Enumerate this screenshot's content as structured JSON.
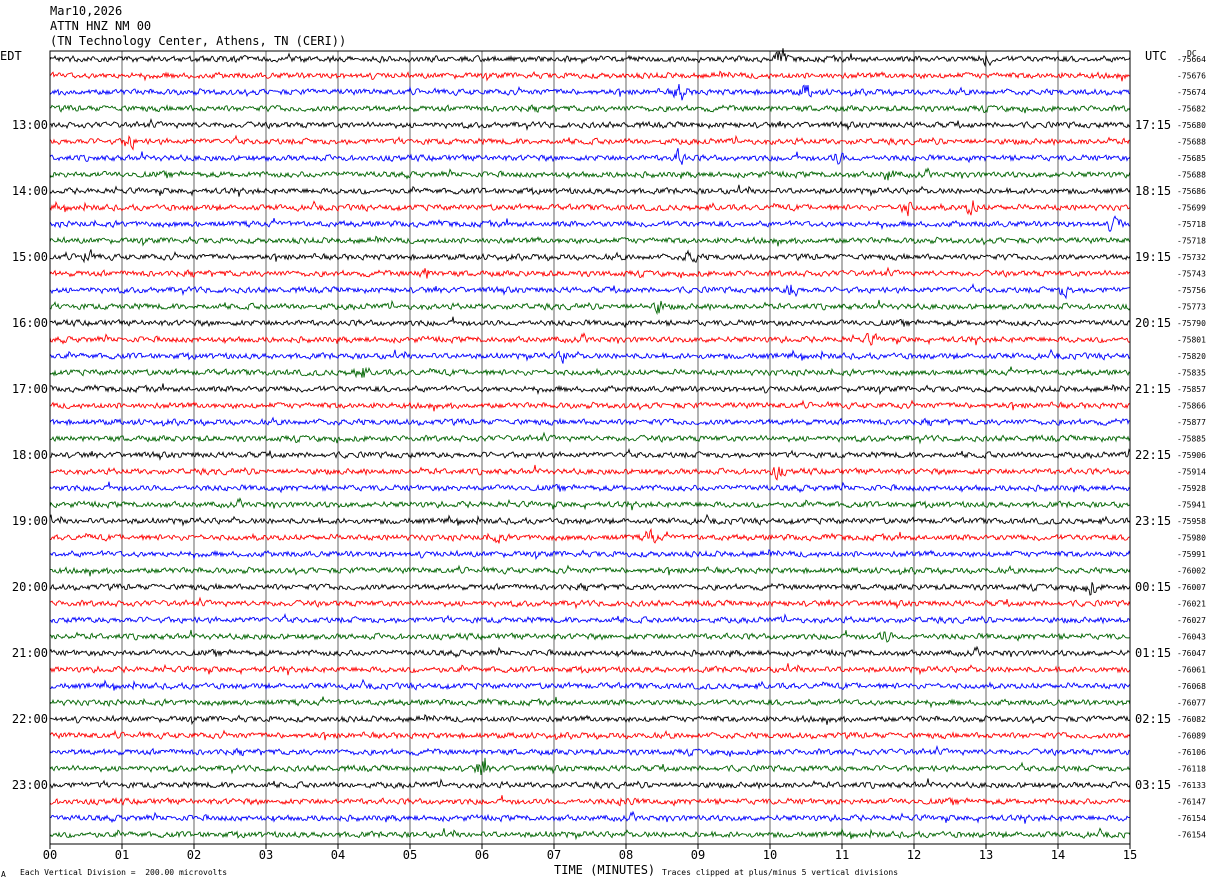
{
  "header": {
    "date": "Mar10,2026",
    "station": "ATTN HNZ NM 00",
    "location": "(TN Technology Center, Athens, TN (CERI))"
  },
  "left_tz": "EDT",
  "right_tz": "UTC",
  "dc_label": "DC",
  "footer": {
    "scale_text": "Each Vertical Division =  200.00 microvolts",
    "xlabel": "TIME (MINUTES)",
    "clip_text": "Traces clipped at plus/minus 5 vertical divisions",
    "corner_mark": "A"
  },
  "chart_data": {
    "type": "line",
    "title": "ATTN HNZ NM 00",
    "xlabel": "TIME (MINUTES)",
    "x_ticks": [
      "00",
      "01",
      "02",
      "03",
      "04",
      "05",
      "06",
      "07",
      "08",
      "09",
      "10",
      "11",
      "12",
      "13",
      "14",
      "15"
    ],
    "xlim": [
      0,
      15
    ],
    "grid": true,
    "trace_colors": [
      "#000000",
      "#ff0000",
      "#0000ff",
      "#006400"
    ],
    "left_time_labels": [
      {
        "trace": 4,
        "text": "13:00"
      },
      {
        "trace": 8,
        "text": "14:00"
      },
      {
        "trace": 12,
        "text": "15:00"
      },
      {
        "trace": 16,
        "text": "16:00"
      },
      {
        "trace": 20,
        "text": "17:00"
      },
      {
        "trace": 24,
        "text": "18:00"
      },
      {
        "trace": 28,
        "text": "19:00"
      },
      {
        "trace": 32,
        "text": "20:00"
      },
      {
        "trace": 36,
        "text": "21:00"
      },
      {
        "trace": 40,
        "text": "22:00"
      },
      {
        "trace": 44,
        "text": "23:00"
      }
    ],
    "right_time_labels": [
      {
        "trace": 4,
        "text": "17:15"
      },
      {
        "trace": 8,
        "text": "18:15"
      },
      {
        "trace": 12,
        "text": "19:15"
      },
      {
        "trace": 16,
        "text": "20:15"
      },
      {
        "trace": 20,
        "text": "21:15"
      },
      {
        "trace": 24,
        "text": "22:15"
      },
      {
        "trace": 28,
        "text": "23:15"
      },
      {
        "trace": 32,
        "text": "00:15"
      },
      {
        "trace": 36,
        "text": "01:15"
      },
      {
        "trace": 40,
        "text": "02:15"
      },
      {
        "trace": 44,
        "text": "03:15"
      }
    ],
    "dc_offsets": [
      "-75664",
      "-75676",
      "-75674",
      "-75682",
      "-75680",
      "-75688",
      "-75685",
      "-75688",
      "-75686",
      "-75699",
      "-75718",
      "-75718",
      "-75732",
      "-75743",
      "-75756",
      "-75773",
      "-75790",
      "-75801",
      "-75820",
      "-75835",
      "-75857",
      "-75866",
      "-75877",
      "-75885",
      "-75906",
      "-75914",
      "-75928",
      "-75941",
      "-75958",
      "-75980",
      "-75991",
      "-76002",
      "-76007",
      "-76021",
      "-76027",
      "-76043",
      "-76047",
      "-76061",
      "-76068",
      "-76077",
      "-76082",
      "-76089",
      "-76106",
      "-76118",
      "-76133",
      "-76147",
      "-76154",
      "-76154"
    ],
    "events": [
      {
        "trace": 0,
        "minute": 10.15,
        "amp": 2.6
      },
      {
        "trace": 0,
        "minute": 13.0,
        "amp": 1.8
      },
      {
        "trace": 2,
        "minute": 8.75,
        "amp": 3.0
      },
      {
        "trace": 2,
        "minute": 10.5,
        "amp": 2.2
      },
      {
        "trace": 5,
        "minute": 1.1,
        "amp": 2.4
      },
      {
        "trace": 6,
        "minute": 8.75,
        "amp": 2.6
      },
      {
        "trace": 6,
        "minute": 10.95,
        "amp": 1.8
      },
      {
        "trace": 7,
        "minute": 11.65,
        "amp": 2.0
      },
      {
        "trace": 9,
        "minute": 11.9,
        "amp": 2.6
      },
      {
        "trace": 9,
        "minute": 12.8,
        "amp": 2.6
      },
      {
        "trace": 10,
        "minute": 14.8,
        "amp": 2.8
      },
      {
        "trace": 12,
        "minute": 0.5,
        "amp": 2.6
      },
      {
        "trace": 12,
        "minute": 8.9,
        "amp": 2.4
      },
      {
        "trace": 13,
        "minute": 5.2,
        "amp": 1.8
      },
      {
        "trace": 14,
        "minute": 10.3,
        "amp": 2.2
      },
      {
        "trace": 14,
        "minute": 14.1,
        "amp": 2.2
      },
      {
        "trace": 15,
        "minute": 8.45,
        "amp": 2.0
      },
      {
        "trace": 17,
        "minute": 11.4,
        "amp": 1.6
      },
      {
        "trace": 18,
        "minute": 7.15,
        "amp": 2.0
      },
      {
        "trace": 19,
        "minute": 4.3,
        "amp": 2.2
      },
      {
        "trace": 25,
        "minute": 10.1,
        "amp": 2.0
      },
      {
        "trace": 29,
        "minute": 8.35,
        "amp": 2.6
      },
      {
        "trace": 29,
        "minute": 6.2,
        "amp": 1.6
      },
      {
        "trace": 32,
        "minute": 14.45,
        "amp": 2.2
      },
      {
        "trace": 35,
        "minute": 11.6,
        "amp": 1.8
      },
      {
        "trace": 43,
        "minute": 6.0,
        "amp": 2.6
      },
      {
        "trace": 45,
        "minute": 8.0,
        "amp": 2.0
      }
    ]
  }
}
